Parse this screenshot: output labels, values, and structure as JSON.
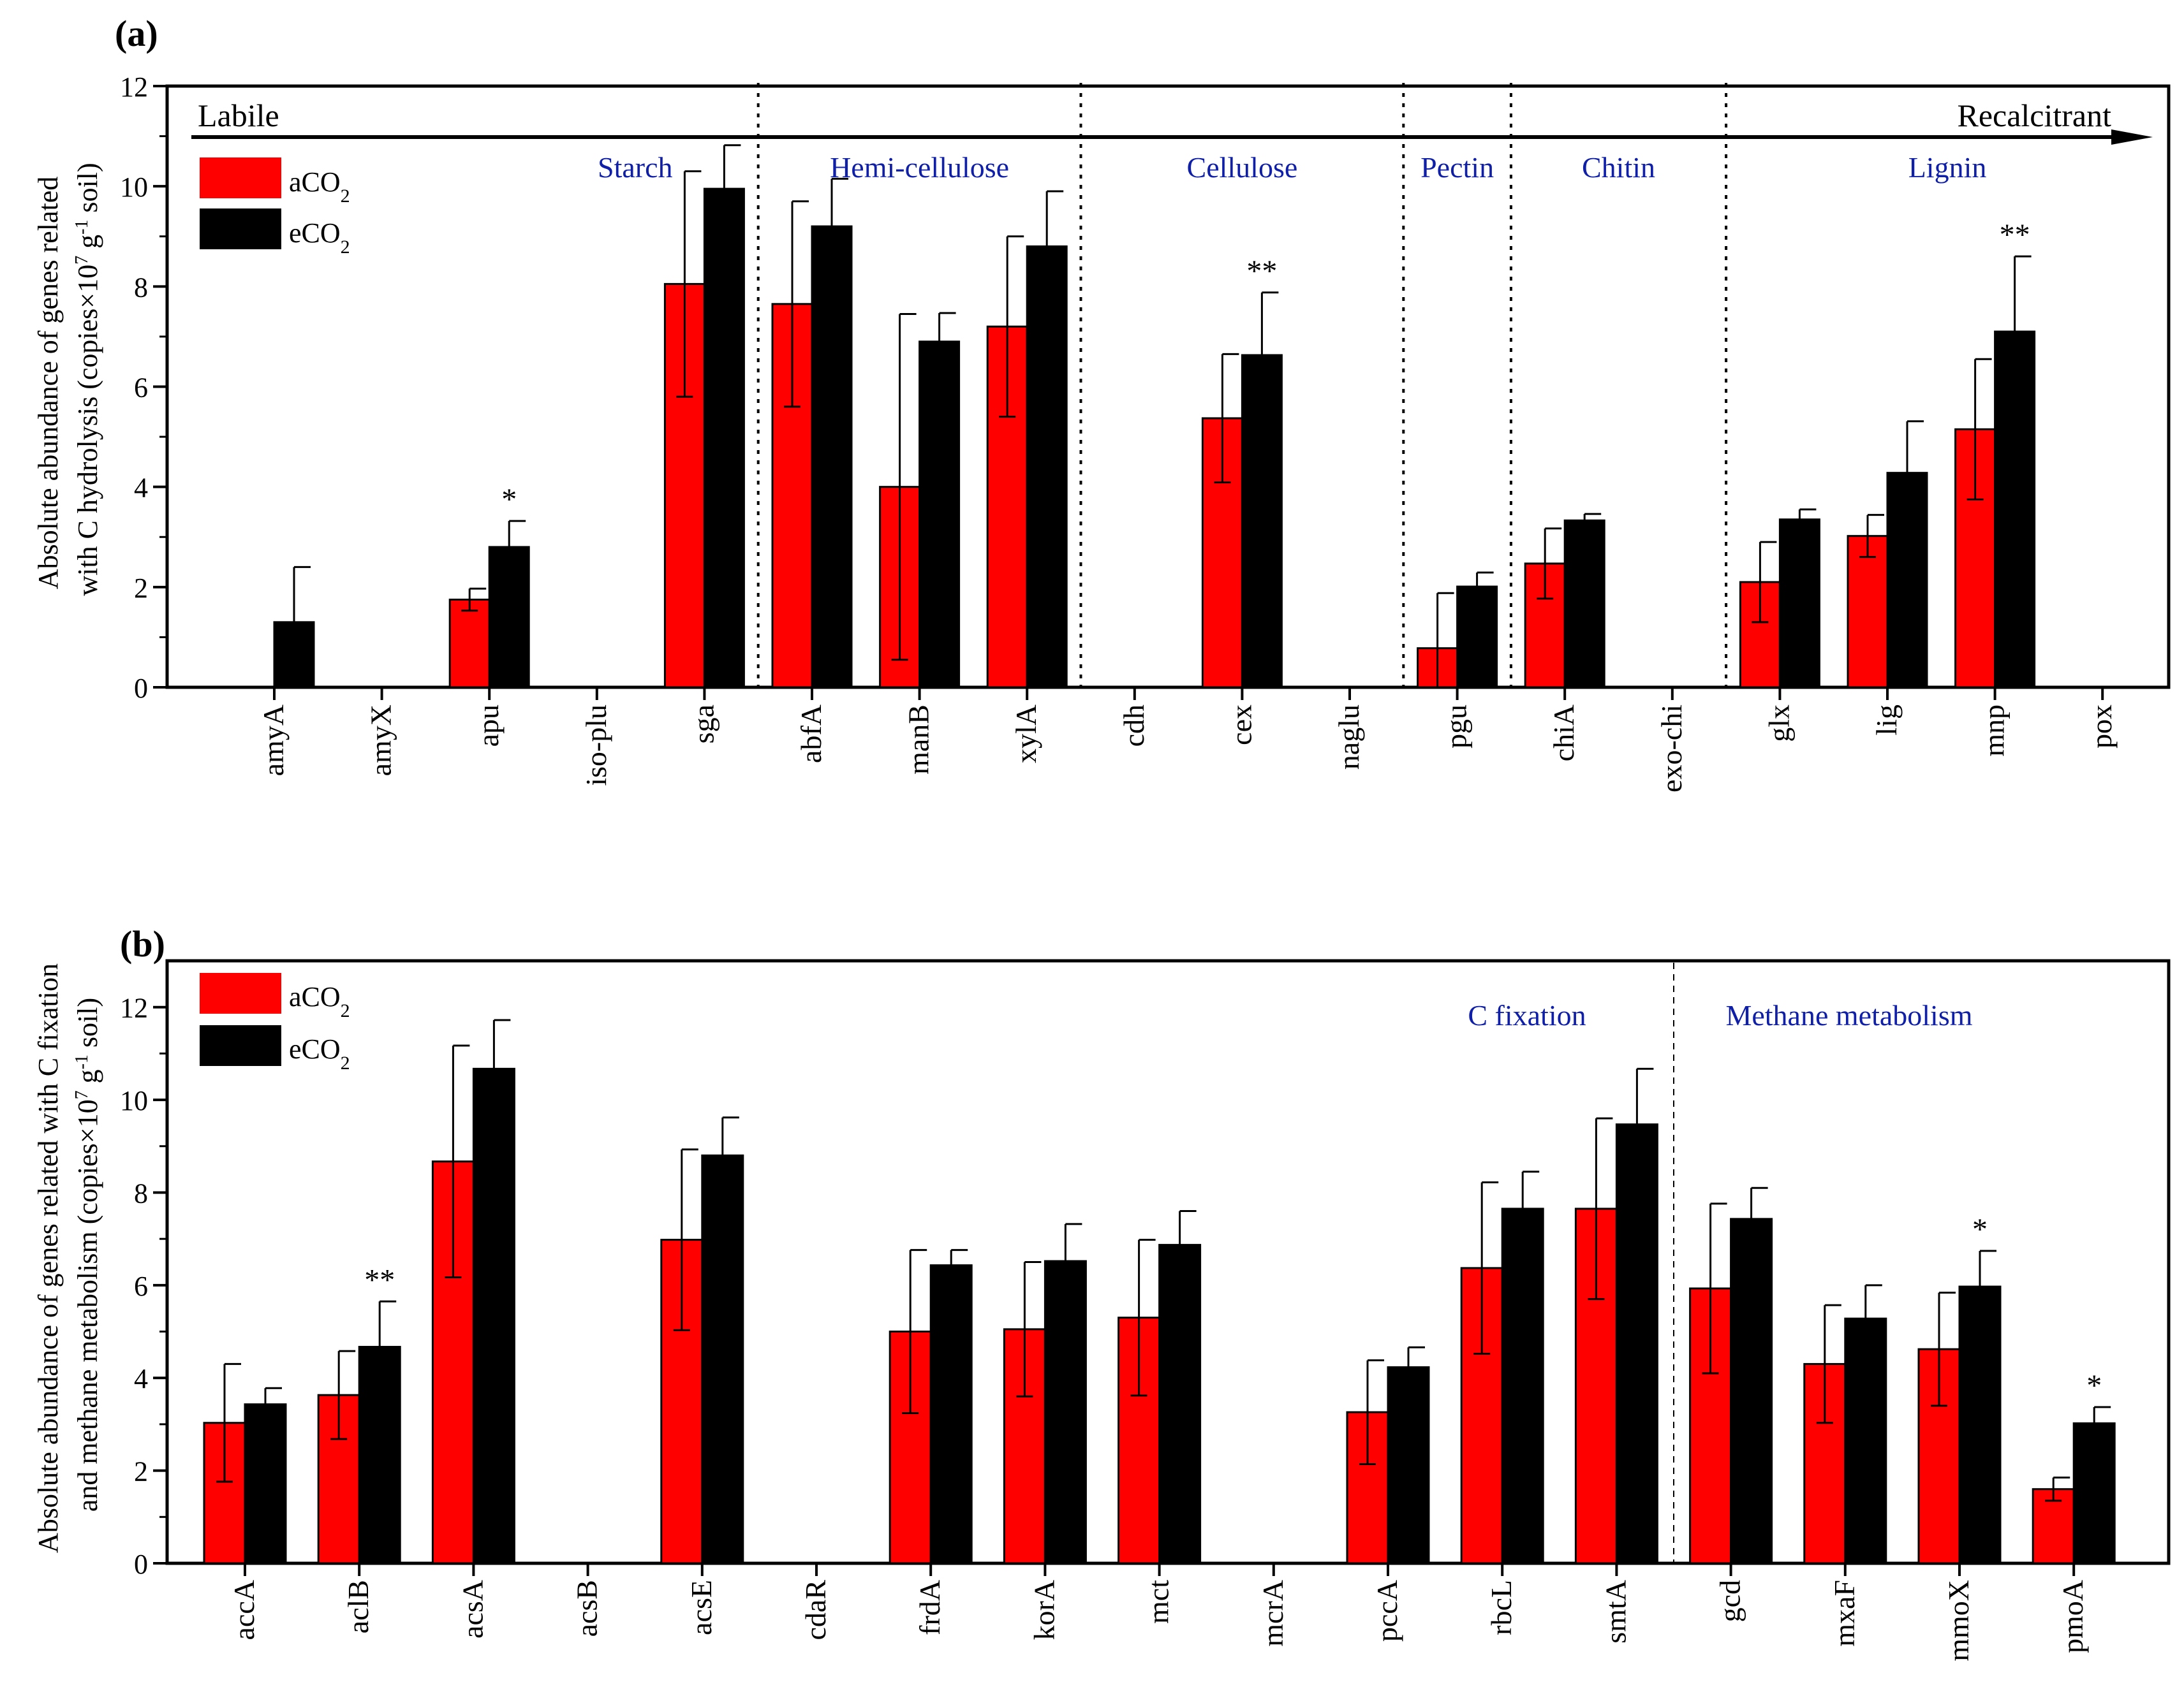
{
  "colors": {
    "aCO2": "#ff0000",
    "eCO2": "#000000",
    "region_label": "#0f1fa8",
    "axis": "#000000"
  },
  "chart_data": [
    {
      "type": "bar",
      "panel_label": "(a)",
      "ylabel_line1": "Absolute abundance of genes related",
      "ylabel_line2_pre": "with C hydrolysis (copies×10",
      "ylabel_exp1": "7",
      "ylabel_line2_mid": " g",
      "ylabel_exp2": "-1",
      "ylabel_line2_post": " soil)",
      "ylim": [
        0,
        12
      ],
      "yticks": [
        "0",
        "2",
        "4",
        "6",
        "8",
        "10",
        "12"
      ],
      "ytick_values": [
        0,
        2,
        4,
        6,
        8,
        10,
        12
      ],
      "legend": [
        {
          "key": "aCO2",
          "base": "aCO",
          "sub": "2"
        },
        {
          "key": "eCO2",
          "base": "eCO",
          "sub": "2"
        }
      ],
      "arrow": {
        "left_label": "Labile",
        "right_label": "Recalcitrant"
      },
      "categories": [
        "amyA",
        "amyX",
        "apu",
        "iso-plu",
        "sga",
        "abfA",
        "manB",
        "xylA",
        "cdh",
        "cex",
        "naglu",
        "pgu",
        "chiA",
        "exo-chi",
        "glx",
        "lig",
        "mnp",
        "pox"
      ],
      "series": [
        {
          "name": "aCO2",
          "values": [
            0,
            0,
            1.75,
            0,
            8.05,
            7.65,
            4.0,
            7.2,
            0,
            5.37,
            0,
            0.78,
            2.47,
            0,
            2.1,
            3.02,
            5.15,
            0
          ],
          "errors": [
            0,
            0,
            0.22,
            0,
            2.25,
            2.05,
            3.45,
            1.8,
            0,
            1.28,
            0,
            1.1,
            0.7,
            0,
            0.8,
            0.42,
            1.4,
            0
          ]
        },
        {
          "name": "eCO2",
          "values": [
            1.3,
            0,
            2.8,
            0,
            9.95,
            9.2,
            6.9,
            8.8,
            0,
            6.63,
            0,
            2.01,
            3.33,
            0,
            3.35,
            4.28,
            7.1,
            0
          ],
          "errors": [
            1.1,
            0,
            0.52,
            0,
            0.87,
            0.95,
            0.57,
            1.1,
            0,
            1.25,
            0,
            0.28,
            0.13,
            0,
            0.2,
            1.03,
            1.5,
            0
          ]
        }
      ],
      "significance": [
        {
          "category": "apu",
          "mark": "*"
        },
        {
          "category": "cex",
          "mark": "**"
        },
        {
          "category": "mnp",
          "mark": "**"
        }
      ],
      "regions": [
        {
          "label": "Starch",
          "from": 0,
          "to": 4
        },
        {
          "label": "Hemi-cellulose",
          "from": 5,
          "to": 7
        },
        {
          "label": "Cellulose",
          "from": 8,
          "to": 10
        },
        {
          "label": "Pectin",
          "from": 11,
          "to": 11
        },
        {
          "label": "Chitin",
          "from": 12,
          "to": 13
        },
        {
          "label": "Lignin",
          "from": 14,
          "to": 17
        }
      ]
    },
    {
      "type": "bar",
      "panel_label": "(b)",
      "ylabel_line1": "Absolute abundance of genes related with C fixation",
      "ylabel_line2_pre": "and methane metabolism (copies×10",
      "ylabel_exp1": "7",
      "ylabel_line2_mid": " g",
      "ylabel_exp2": "-1",
      "ylabel_line2_post": " soil)",
      "ylim": [
        0,
        13
      ],
      "yticks": [
        "0",
        "2",
        "4",
        "6",
        "8",
        "10",
        "12"
      ],
      "ytick_values": [
        0,
        2,
        4,
        6,
        8,
        10,
        12
      ],
      "legend": [
        {
          "key": "aCO2",
          "base": "aCO",
          "sub": "2"
        },
        {
          "key": "eCO2",
          "base": "eCO",
          "sub": "2"
        }
      ],
      "categories": [
        "accA",
        "aclB",
        "acsA",
        "acsB",
        "acsE",
        "cdaR",
        "frdA",
        "korA",
        "mct",
        "mcrA",
        "pccA",
        "rbcL",
        "smtA",
        "gcd",
        "mxaF",
        "mmoX",
        "pmoA"
      ],
      "series": [
        {
          "name": "aCO2",
          "values": [
            3.03,
            3.63,
            8.67,
            0,
            6.98,
            0,
            5.0,
            5.05,
            5.3,
            0,
            3.26,
            6.37,
            7.65,
            5.93,
            4.3,
            4.62,
            1.6
          ],
          "errors": [
            1.27,
            0.95,
            2.5,
            0,
            1.95,
            0,
            1.76,
            1.45,
            1.68,
            0,
            1.12,
            1.85,
            1.95,
            1.83,
            1.27,
            1.22,
            0.25
          ]
        },
        {
          "name": "eCO2",
          "values": [
            3.43,
            4.67,
            10.67,
            0,
            8.8,
            0,
            6.43,
            6.52,
            6.87,
            0,
            4.23,
            7.65,
            9.47,
            7.43,
            5.28,
            5.97,
            3.02
          ],
          "errors": [
            0.35,
            0.98,
            1.05,
            0,
            0.82,
            0,
            0.33,
            0.8,
            0.73,
            0,
            0.43,
            0.8,
            1.2,
            0.67,
            0.72,
            0.77,
            0.35
          ]
        }
      ],
      "significance": [
        {
          "category": "aclB",
          "mark": "**"
        },
        {
          "category": "mmoX",
          "mark": "*"
        },
        {
          "category": "pmoA",
          "mark": "*"
        }
      ],
      "regions": [
        {
          "label": "C fixation",
          "from": 0,
          "to": 12
        },
        {
          "label": "Methane metabolism",
          "from": 13,
          "to": 16
        }
      ]
    }
  ]
}
